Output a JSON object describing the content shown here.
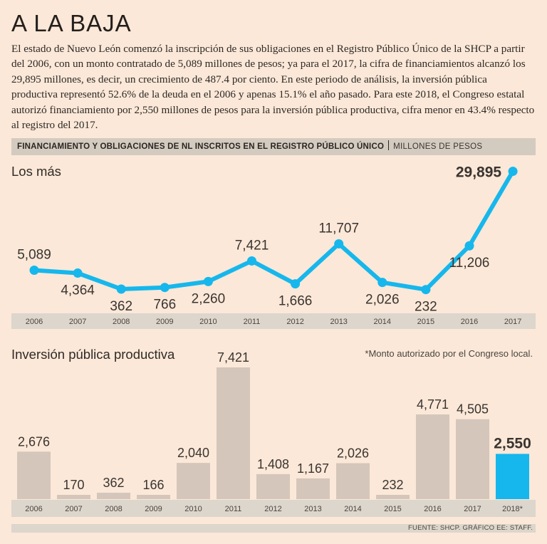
{
  "headline": "A LA BAJA",
  "intro": "El estado de Nuevo León comenzó la inscripción de sus obligaciones en el Registro Público Único de la SHCP a partir del 2006, con un monto contratado de 5,089 millones de pesos; ya para el 2017, la cifra de financiamientos alcanzó los 29,895 millones, es decir, un crecimiento de 487.4 por ciento. En este periodo de análisis, la inversión pública productiva representó 52.6% de la deuda en el 2006 y apenas 15.1% el año pasado. Para este 2018, el Congreso estatal autorizó financiamiento por 2,550 millones de pesos para la inversión pública productiva, cifra menor en 43.4% respecto al registro del 2017.",
  "banner": {
    "title": "FINANCIAMIENTO Y OBLIGACIONES DE NL INSCRITOS EN EL REGISTRO PÚBLICO ÚNICO",
    "unit": "MILLONES DE PESOS"
  },
  "note": "*Monto autorizado por el Congreso local.",
  "source": "FUENTE: SHCP. GRÁFICO EE: STAFF.",
  "colors": {
    "background": "#fbe8d8",
    "accent": "#16b7ec",
    "bar": "#d4c6ba",
    "axis_band": "#ddd6cc"
  },
  "chart_data": [
    {
      "type": "line",
      "title": "Los más",
      "x": [
        "2006",
        "2007",
        "2008",
        "2009",
        "2010",
        "2011",
        "2012",
        "2013",
        "2014",
        "2015",
        "2016",
        "2017"
      ],
      "values": [
        5089,
        4364,
        362,
        766,
        2260,
        7421,
        1666,
        11707,
        2026,
        232,
        11206,
        29895
      ],
      "labels": [
        "5,089",
        "4,364",
        "362",
        "766",
        "2,260",
        "7,421",
        "1,666",
        "11,707",
        "2,026",
        "232",
        "11,206",
        "29,895"
      ],
      "highlight_index": 11,
      "ylim": [
        0,
        30000
      ]
    },
    {
      "type": "bar",
      "title": "Inversión pública productiva",
      "categories": [
        "2006",
        "2007",
        "2008",
        "2009",
        "2010",
        "2011",
        "2012",
        "2013",
        "2014",
        "2015",
        "2016",
        "2017",
        "2018*"
      ],
      "values": [
        2676,
        170,
        362,
        166,
        2040,
        7421,
        1408,
        1167,
        2026,
        232,
        4771,
        4505,
        2550
      ],
      "labels": [
        "2,676",
        "170",
        "362",
        "166",
        "2,040",
        "7,421",
        "1,408",
        "1,167",
        "2,026",
        "232",
        "4,771",
        "4,505",
        "2,550"
      ],
      "highlight_index": 12,
      "ylim": [
        0,
        7421
      ]
    }
  ]
}
